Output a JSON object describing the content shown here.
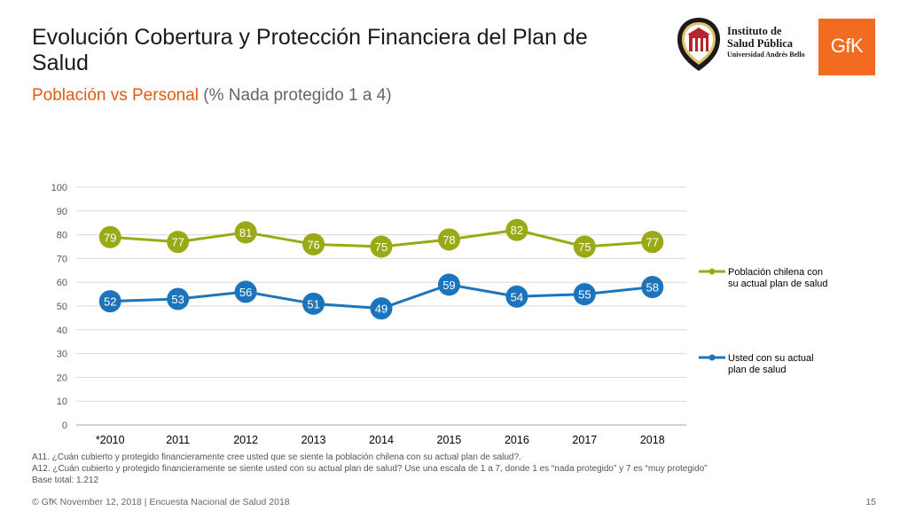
{
  "header": {
    "title": "Evolución Cobertura y Protección Financiera del Plan de Salud",
    "subtitle_main": "Población vs Personal",
    "subtitle_note": "(% Nada protegido 1 a 4)"
  },
  "logos": {
    "isp_line1": "Instituto de",
    "isp_line2": "Salud Pública",
    "isp_line3": "Universidad Andrés Bello",
    "gfk_text": "GfK"
  },
  "colors": {
    "green": "#9aaa16",
    "blue": "#1c75bc",
    "accent": "#e35a12",
    "gfk_orange": "#f26b21",
    "seal_red": "#b3262e"
  },
  "chart_data": {
    "type": "line",
    "categories": [
      "*2010",
      "2011",
      "2012",
      "2013",
      "2014",
      "2015",
      "2016",
      "2017",
      "2018"
    ],
    "ylim": [
      0,
      100
    ],
    "yticks": [
      0,
      10,
      20,
      30,
      40,
      50,
      60,
      70,
      80,
      90,
      100
    ],
    "grid": true,
    "legend_position": "right",
    "series": [
      {
        "name": "Población chilena con su actual plan de salud",
        "legend_lines": [
          "Población chilena con",
          "su actual plan de salud"
        ],
        "color": "#9aaa16",
        "values": [
          79,
          77,
          81,
          76,
          75,
          78,
          82,
          75,
          77
        ]
      },
      {
        "name": "Usted con su actual plan de salud",
        "legend_lines": [
          "Usted con su actual",
          "plan de salud"
        ],
        "color": "#1c75bc",
        "values": [
          52,
          53,
          56,
          51,
          49,
          59,
          54,
          55,
          58
        ]
      }
    ]
  },
  "footnotes": {
    "a11": "A11. ¿Cuán cubierto y protegido financieramente cree usted que se siente la población chilena con su actual plan de salud?.",
    "a12": "A12. ¿Cuán cubierto y protegido financieramente se siente usted con su actual plan de salud?   Use una escala de 1 a 7, donde 1 es “nada protegido” y 7 es “muy protegido”",
    "base": "Base total: 1.212"
  },
  "footer": {
    "text": "© GfK November 12, 2018 | Encuesta Nacional de Salud 2018",
    "page": "15"
  }
}
